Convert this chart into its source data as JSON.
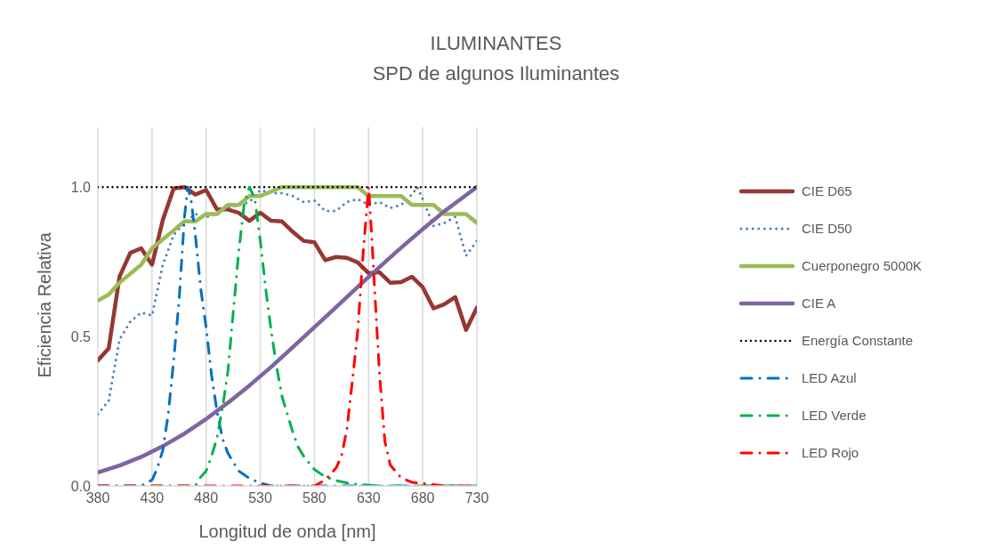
{
  "chart_data": {
    "type": "line",
    "title": "ILUMINANTES",
    "subtitle": "SPD de algunos Iluminantes",
    "xlabel": "Longitud de onda [nm]",
    "ylabel": "Eficiencia Relativa",
    "xlim": [
      380,
      730
    ],
    "xticks": [
      380,
      430,
      480,
      530,
      580,
      630,
      680,
      730
    ],
    "ylim": [
      0,
      1.2
    ],
    "yticks": [
      {
        "value": 0,
        "label": "0.0"
      },
      {
        "value": 0.5,
        "label": "0.5"
      },
      {
        "value": 1,
        "label": "1.0"
      }
    ],
    "grid": "x",
    "legend": "right",
    "marker": "none",
    "series": [
      {
        "name": "CIE D65",
        "color": "#953735",
        "line_style": "solid",
        "x": [
          380,
          390,
          400,
          410,
          420,
          430,
          440,
          450,
          460,
          470,
          480,
          490,
          500,
          510,
          520,
          530,
          540,
          550,
          560,
          570,
          580,
          590,
          600,
          610,
          620,
          630,
          640,
          650,
          660,
          670,
          680,
          690,
          700,
          710,
          720,
          730
        ],
        "values": [
          0.42,
          0.46,
          0.7,
          0.78,
          0.795,
          0.74,
          0.89,
          0.995,
          1.0,
          0.975,
          0.99,
          0.925,
          0.925,
          0.914,
          0.887,
          0.914,
          0.887,
          0.885,
          0.85,
          0.82,
          0.815,
          0.755,
          0.766,
          0.763,
          0.748,
          0.712,
          0.715,
          0.68,
          0.682,
          0.7,
          0.665,
          0.594,
          0.608,
          0.632,
          0.522,
          0.596
        ]
      },
      {
        "name": "CIE D50",
        "color": "#4f81bd",
        "line_style": "dotted",
        "x": [
          380,
          390,
          400,
          410,
          420,
          430,
          440,
          450,
          460,
          470,
          480,
          490,
          500,
          510,
          520,
          530,
          540,
          550,
          560,
          570,
          580,
          590,
          600,
          610,
          620,
          630,
          640,
          650,
          660,
          670,
          675,
          680,
          690,
          700,
          710,
          720,
          730
        ],
        "values": [
          0.24,
          0.285,
          0.49,
          0.55,
          0.58,
          0.57,
          0.74,
          0.84,
          0.88,
          0.91,
          0.9,
          0.91,
          0.93,
          0.94,
          0.95,
          0.99,
          0.98,
          0.98,
          0.97,
          0.95,
          0.955,
          0.92,
          0.92,
          0.95,
          0.96,
          0.94,
          0.95,
          0.93,
          0.94,
          0.975,
          1.0,
          0.96,
          0.87,
          0.88,
          0.9,
          0.77,
          0.82
        ]
      },
      {
        "name": "Cuerponegro 5000K",
        "color": "#9bbb59",
        "line_style": "solid",
        "x": [
          380,
          390,
          400,
          410,
          420,
          430,
          440,
          450,
          460,
          470,
          480,
          490,
          500,
          510,
          520,
          530,
          540,
          550,
          560,
          570,
          580,
          590,
          600,
          610,
          620,
          630,
          640,
          650,
          660,
          670,
          680,
          690,
          700,
          710,
          720,
          730
        ],
        "values": [
          0.62,
          0.64,
          0.68,
          0.71,
          0.74,
          0.795,
          0.825,
          0.855,
          0.885,
          0.885,
          0.91,
          0.91,
          0.94,
          0.94,
          0.97,
          0.97,
          0.985,
          1.0,
          1.0,
          1.0,
          1.0,
          1.0,
          1.0,
          1.0,
          1.0,
          0.97,
          0.97,
          0.97,
          0.97,
          0.94,
          0.94,
          0.94,
          0.91,
          0.91,
          0.91,
          0.88
        ]
      },
      {
        "name": "CIE A",
        "color": "#8064a2",
        "line_style": "solid",
        "x": [
          380,
          400,
          420,
          440,
          460,
          480,
          500,
          520,
          540,
          560,
          580,
          600,
          620,
          640,
          660,
          680,
          700,
          720,
          730
        ],
        "values": [
          0.045,
          0.068,
          0.097,
          0.133,
          0.175,
          0.224,
          0.278,
          0.336,
          0.398,
          0.464,
          0.531,
          0.598,
          0.666,
          0.732,
          0.797,
          0.859,
          0.919,
          0.973,
          1.0
        ]
      },
      {
        "name": "Energía Constante",
        "color": "#000000",
        "line_style": "dotted",
        "x": [
          380,
          730
        ],
        "values": [
          1.0,
          1.0
        ]
      },
      {
        "name": "LED Azul",
        "color": "#0070c0",
        "line_style": "dashed",
        "x": [
          380,
          420,
          430,
          435,
          440,
          445,
          450,
          455,
          460,
          463,
          466,
          470,
          475,
          480,
          485,
          490,
          495,
          500,
          510,
          520,
          530,
          540,
          730
        ],
        "values": [
          0,
          0,
          0.02,
          0.06,
          0.12,
          0.24,
          0.42,
          0.62,
          0.9,
          1.0,
          0.96,
          0.84,
          0.66,
          0.53,
          0.37,
          0.25,
          0.16,
          0.11,
          0.05,
          0.025,
          0.01,
          0,
          0
        ]
      },
      {
        "name": "LED Verde",
        "color": "#00b050",
        "line_style": "dashed",
        "x": [
          380,
          470,
          475,
          480,
          485,
          490,
          495,
          500,
          505,
          510,
          515,
          520,
          525,
          530,
          535,
          540,
          545,
          550,
          555,
          560,
          565,
          570,
          580,
          590,
          600,
          610,
          620,
          640,
          730
        ],
        "values": [
          0,
          0,
          0.03,
          0.05,
          0.1,
          0.16,
          0.26,
          0.38,
          0.58,
          0.78,
          0.94,
          1.0,
          0.96,
          0.82,
          0.66,
          0.52,
          0.4,
          0.3,
          0.24,
          0.18,
          0.13,
          0.1,
          0.055,
          0.03,
          0.018,
          0.01,
          0.005,
          0,
          0
        ]
      },
      {
        "name": "LED Rojo",
        "color": "#ff0000",
        "line_style": "dashed",
        "x": [
          380,
          580,
          590,
          600,
          605,
          610,
          615,
          620,
          625,
          630,
          633,
          636,
          640,
          645,
          650,
          660,
          670,
          680,
          700,
          730
        ],
        "values": [
          0,
          0,
          0.02,
          0.06,
          0.1,
          0.19,
          0.35,
          0.52,
          0.78,
          1.0,
          0.83,
          0.63,
          0.38,
          0.15,
          0.07,
          0.027,
          0.012,
          0.008,
          0,
          0
        ]
      }
    ]
  }
}
